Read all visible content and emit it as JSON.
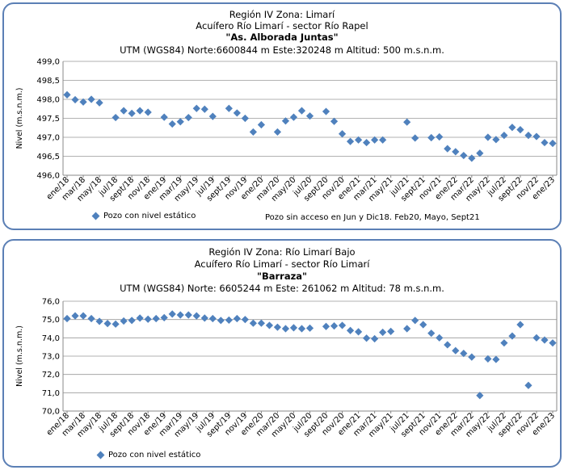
{
  "charts": [
    {
      "header": {
        "line1": "Región IV  Zona: Limarí",
        "line2": "Acuífero Río Limarí - sector Río Rapel",
        "line3": "\"As. Alborada Juntas\"",
        "line4": "UTM (WGS84) Norte:6600844 m     Este:320248 m     Altitud: 500 m.s.n.m."
      },
      "legend_label": "Pozo con nivel estático",
      "note": "Pozo sin acceso en Jun y Dic18. Feb20, Mayo, Sept21"
    },
    {
      "header": {
        "line1": "Región IV  Zona: Río Limarí Bajo",
        "line2": "Acuífero Río Limarí - sector Río Limarí",
        "line3": "\"Barraza\"",
        "line4": "UTM (WGS84) Norte: 6605244 m    Este: 261062 m    Altitud: 78 m.s.n.m."
      },
      "legend_label": "Pozo con nivel estático",
      "note": ""
    }
  ],
  "chart_data": [
    {
      "type": "scatter",
      "title": "\"As. Alborada Juntas\"",
      "ylabel": "Nivel (m.s.n.m.)",
      "ylim": [
        496.0,
        499.0
      ],
      "yticks": [
        "496,0",
        "496,5",
        "497,0",
        "497,5",
        "498,0",
        "498,5",
        "499,0"
      ],
      "yticks_values": [
        496.0,
        496.5,
        497.0,
        497.5,
        498.0,
        498.5,
        499.0
      ],
      "xticks": [
        "ene/18",
        "mar/18",
        "may/18",
        "jul/18",
        "sept/18",
        "nov/18",
        "ene/19",
        "mar/19",
        "may/19",
        "jul/19",
        "sept/19",
        "nov/19",
        "ene/20",
        "mar/20",
        "may/20",
        "jul/20",
        "sept/20",
        "nov/20",
        "ene/21",
        "mar/21",
        "may/21",
        "jul/21",
        "sept/21",
        "nov/21",
        "ene/22",
        "mar/22",
        "may/22",
        "jul/22",
        "sept/22",
        "nov/22",
        "ene/23"
      ],
      "grid": true,
      "marker_color": "#4f81bd",
      "series": [
        {
          "name": "Pozo con nivel estático",
          "points": [
            [
              "ene/18",
              498.12
            ],
            [
              "feb/18",
              497.99
            ],
            [
              "mar/18",
              497.93
            ],
            [
              "abr/18",
              498.0
            ],
            [
              "may/18",
              497.91
            ],
            [
              "jul/18",
              497.52
            ],
            [
              "ago/18",
              497.7
            ],
            [
              "sept/18",
              497.63
            ],
            [
              "oct/18",
              497.7
            ],
            [
              "nov/18",
              497.66
            ],
            [
              "ene/19",
              497.53
            ],
            [
              "feb/19",
              497.35
            ],
            [
              "mar/19",
              497.41
            ],
            [
              "abr/19",
              497.52
            ],
            [
              "may/19",
              497.76
            ],
            [
              "jun/19",
              497.74
            ],
            [
              "jul/19",
              497.55
            ],
            [
              "sept/19",
              497.76
            ],
            [
              "oct/19",
              497.64
            ],
            [
              "nov/19",
              497.5
            ],
            [
              "dic/19",
              497.14
            ],
            [
              "ene/20",
              497.33
            ],
            [
              "mar/20",
              497.14
            ],
            [
              "abr/20",
              497.43
            ],
            [
              "may/20",
              497.53
            ],
            [
              "jun/20",
              497.7
            ],
            [
              "jul/20",
              497.56
            ],
            [
              "sept/20",
              497.68
            ],
            [
              "oct/20",
              497.42
            ],
            [
              "nov/20",
              497.09
            ],
            [
              "dic/20",
              496.89
            ],
            [
              "ene/21",
              496.93
            ],
            [
              "feb/21",
              496.86
            ],
            [
              "mar/21",
              496.93
            ],
            [
              "abr/21",
              496.93
            ],
            [
              "jul/21",
              497.4
            ],
            [
              "ago/21",
              496.98
            ],
            [
              "oct/21",
              496.99
            ],
            [
              "nov/21",
              497.01
            ],
            [
              "dic/21",
              496.7
            ],
            [
              "ene/22",
              496.62
            ],
            [
              "feb/22",
              496.52
            ],
            [
              "mar/22",
              496.45
            ],
            [
              "abr/22",
              496.58
            ],
            [
              "may/22",
              497.0
            ],
            [
              "jun/22",
              496.94
            ],
            [
              "jul/22",
              497.05
            ],
            [
              "ago/22",
              497.26
            ],
            [
              "sept/22",
              497.2
            ],
            [
              "oct/22",
              497.05
            ],
            [
              "nov/22",
              497.02
            ],
            [
              "dic/22",
              496.86
            ],
            [
              "ene/23",
              496.84
            ]
          ]
        }
      ]
    },
    {
      "type": "scatter",
      "title": "\"Barraza\"",
      "ylabel": "Nivel (m.s.n.m.)",
      "ylim": [
        70.0,
        76.0
      ],
      "yticks": [
        "70,0",
        "71,0",
        "72,0",
        "73,0",
        "74,0",
        "75,0",
        "76,0"
      ],
      "yticks_values": [
        70,
        71,
        72,
        73,
        74,
        75,
        76
      ],
      "xticks": [
        "ene/18",
        "mar/18",
        "may/18",
        "jul/18",
        "sept/18",
        "nov/18",
        "ene/19",
        "mar/19",
        "may/19",
        "jul/19",
        "sept/19",
        "nov/19",
        "ene/20",
        "mar/20",
        "may/20",
        "jul/20",
        "sept/20",
        "nov/20",
        "ene/21",
        "mar/21",
        "may/21",
        "jul/21",
        "sept/21",
        "nov/21",
        "ene/22",
        "mar/22",
        "may/22",
        "jul/22",
        "sept/22",
        "nov/22",
        "ene/23"
      ],
      "grid": true,
      "marker_color": "#4f81bd",
      "series": [
        {
          "name": "Pozo con nivel estático",
          "points": [
            [
              "ene/18",
              75.05
            ],
            [
              "feb/18",
              75.2
            ],
            [
              "mar/18",
              75.2
            ],
            [
              "abr/18",
              75.05
            ],
            [
              "may/18",
              74.9
            ],
            [
              "jun/18",
              74.78
            ],
            [
              "jul/18",
              74.75
            ],
            [
              "ago/18",
              74.92
            ],
            [
              "sept/18",
              74.95
            ],
            [
              "oct/18",
              75.08
            ],
            [
              "nov/18",
              75.02
            ],
            [
              "dic/18",
              75.05
            ],
            [
              "ene/19",
              75.1
            ],
            [
              "feb/19",
              75.3
            ],
            [
              "mar/19",
              75.25
            ],
            [
              "abr/19",
              75.25
            ],
            [
              "may/19",
              75.2
            ],
            [
              "jun/19",
              75.08
            ],
            [
              "jul/19",
              75.05
            ],
            [
              "ago/19",
              74.95
            ],
            [
              "sept/19",
              74.97
            ],
            [
              "oct/19",
              75.05
            ],
            [
              "nov/19",
              75.0
            ],
            [
              "dic/19",
              74.8
            ],
            [
              "ene/20",
              74.8
            ],
            [
              "feb/20",
              74.68
            ],
            [
              "mar/20",
              74.58
            ],
            [
              "abr/20",
              74.5
            ],
            [
              "may/20",
              74.55
            ],
            [
              "jun/20",
              74.5
            ],
            [
              "jul/20",
              74.53
            ],
            [
              "sept/20",
              74.62
            ],
            [
              "oct/20",
              74.65
            ],
            [
              "nov/20",
              74.68
            ],
            [
              "dic/20",
              74.4
            ],
            [
              "ene/21",
              74.33
            ],
            [
              "feb/21",
              73.98
            ],
            [
              "mar/21",
              73.95
            ],
            [
              "abr/21",
              74.3
            ],
            [
              "may/21",
              74.35
            ],
            [
              "jul/21",
              74.5
            ],
            [
              "ago/21",
              74.95
            ],
            [
              "sept/21",
              74.72
            ],
            [
              "oct/21",
              74.25
            ],
            [
              "nov/21",
              74.0
            ],
            [
              "dic/21",
              73.62
            ],
            [
              "ene/22",
              73.3
            ],
            [
              "feb/22",
              73.15
            ],
            [
              "mar/22",
              72.95
            ],
            [
              "abr/22",
              70.85
            ],
            [
              "may/22",
              72.85
            ],
            [
              "jun/22",
              72.82
            ],
            [
              "jul/22",
              73.72
            ],
            [
              "ago/22",
              74.1
            ],
            [
              "sept/22",
              74.72
            ],
            [
              "oct/22",
              71.4
            ],
            [
              "nov/22",
              74.0
            ],
            [
              "dic/22",
              73.88
            ],
            [
              "ene/23",
              73.72
            ]
          ]
        }
      ]
    }
  ]
}
